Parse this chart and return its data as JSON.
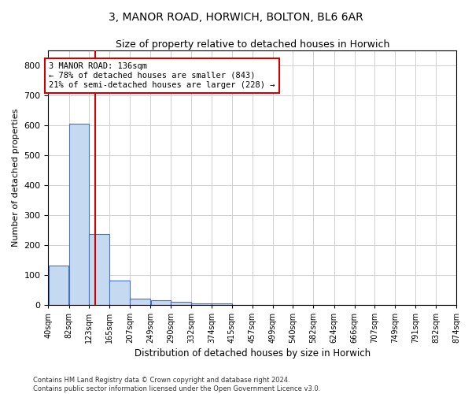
{
  "title": "3, MANOR ROAD, HORWICH, BOLTON, BL6 6AR",
  "subtitle": "Size of property relative to detached houses in Horwich",
  "xlabel": "Distribution of detached houses by size in Horwich",
  "ylabel": "Number of detached properties",
  "bar_values": [
    130,
    605,
    237,
    80,
    20,
    15,
    10,
    5,
    5,
    0,
    0,
    0,
    0,
    0,
    0,
    0,
    0,
    0,
    0,
    0
  ],
  "bin_edges": [
    40,
    82,
    123,
    165,
    207,
    249,
    290,
    332,
    374,
    415,
    457,
    499,
    540,
    582,
    624,
    666,
    707,
    749,
    791,
    832,
    874
  ],
  "tick_labels": [
    "40sqm",
    "82sqm",
    "123sqm",
    "165sqm",
    "207sqm",
    "249sqm",
    "290sqm",
    "332sqm",
    "374sqm",
    "415sqm",
    "457sqm",
    "499sqm",
    "540sqm",
    "582sqm",
    "624sqm",
    "666sqm",
    "707sqm",
    "749sqm",
    "791sqm",
    "832sqm",
    "874sqm"
  ],
  "bar_color": "#c5d9f1",
  "bar_edge_color": "#4472c4",
  "red_line_x": 136,
  "ylim": [
    0,
    850
  ],
  "yticks": [
    0,
    100,
    200,
    300,
    400,
    500,
    600,
    700,
    800
  ],
  "annotation_text": "3 MANOR ROAD: 136sqm\n← 78% of detached houses are smaller (843)\n21% of semi-detached houses are larger (228) →",
  "annotation_box_color": "#ffffff",
  "annotation_box_edge_color": "#cc0000",
  "grid_color": "#d0d0d0",
  "background_color": "#ffffff",
  "footer_line1": "Contains HM Land Registry data © Crown copyright and database right 2024.",
  "footer_line2": "Contains public sector information licensed under the Open Government Licence v3.0."
}
